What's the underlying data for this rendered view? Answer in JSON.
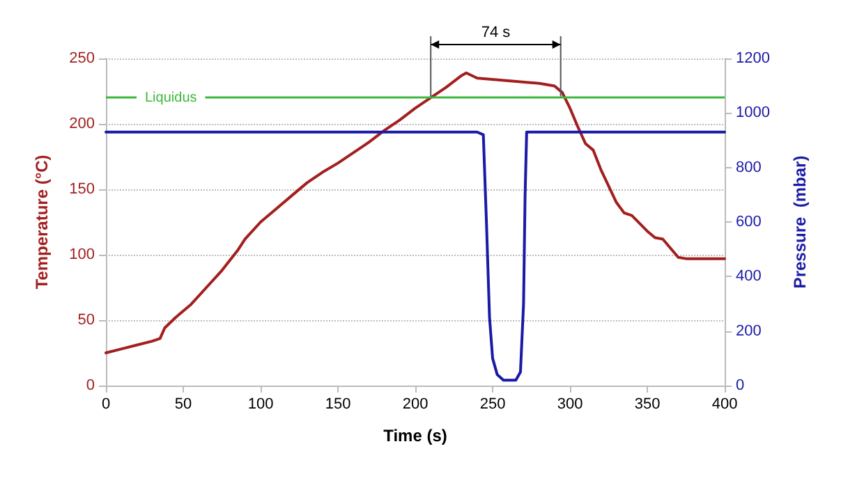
{
  "chart_data": {
    "type": "line",
    "xlabel": "Time (s)",
    "ylabel": "Temperature (°C)",
    "y2label": "Pressure  (mbar)",
    "xlim": [
      0,
      400
    ],
    "xticks": [
      0,
      50,
      100,
      150,
      200,
      250,
      300,
      350,
      400
    ],
    "ylim": [
      0,
      250
    ],
    "yticks": [
      0,
      50,
      100,
      150,
      200,
      250
    ],
    "y2lim": [
      0,
      1200
    ],
    "y2ticks": [
      0,
      200,
      400,
      600,
      800,
      1000,
      1200
    ],
    "grid": "y",
    "marker": "none",
    "line_style": "solid",
    "series": [
      {
        "color": "#a31f1f",
        "x": [
          0,
          10,
          20,
          30,
          35,
          38,
          45,
          55,
          65,
          75,
          85,
          90,
          100,
          110,
          120,
          130,
          140,
          150,
          160,
          170,
          180,
          190,
          200,
          210,
          220,
          230,
          233,
          240,
          260,
          280,
          290,
          295,
          300,
          305,
          310,
          315,
          320,
          330,
          335,
          340,
          350,
          355,
          360,
          370,
          375,
          400
        ],
        "values": [
          25,
          28,
          31,
          34,
          36,
          44,
          52,
          62,
          75,
          88,
          103,
          112,
          125,
          135,
          145,
          155,
          163,
          170,
          178,
          186,
          195,
          203,
          212,
          220,
          228,
          237,
          239,
          235,
          233,
          231,
          229,
          224,
          212,
          198,
          185,
          180,
          165,
          140,
          132,
          130,
          118,
          113,
          112,
          98,
          97,
          97
        ]
      },
      {
        "color": "#1a1aa8",
        "axis": "y2",
        "x": [
          0,
          240,
          244,
          246,
          248,
          250,
          253,
          257,
          265,
          268,
          270,
          271,
          272,
          400
        ],
        "values": [
          930,
          930,
          920,
          600,
          250,
          100,
          40,
          20,
          20,
          50,
          300,
          700,
          930,
          930
        ]
      }
    ],
    "ref_lines": [
      {
        "axis": "y",
        "value": 221,
        "label": "Liquidus",
        "color": "#3cb83c"
      },
      {
        "axis": "x",
        "value": 210,
        "color": "#555555"
      },
      {
        "axis": "x",
        "value": 294,
        "color": "#555555"
      }
    ],
    "annotations": [
      "74 s"
    ]
  }
}
